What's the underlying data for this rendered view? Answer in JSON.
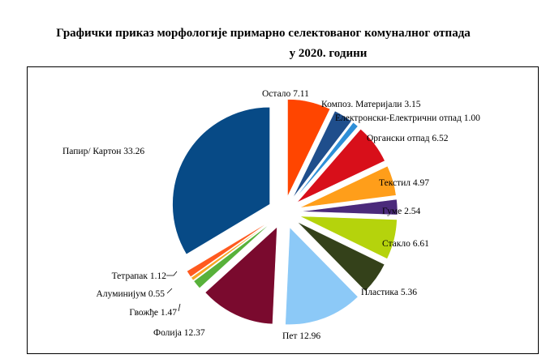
{
  "chart_data": {
    "type": "pie",
    "title_line1": "Графички приказ морфологије примарно селектованог комуналног отпада",
    "title_line2": "у 2020. години",
    "slices": [
      {
        "label": "Остало",
        "value": 7.11,
        "value_text": "7.11",
        "color": "#FF4500"
      },
      {
        "label": "Композ. Материјали",
        "value": 3.15,
        "value_text": "3.15",
        "color": "#1F4E8C"
      },
      {
        "label": "Електронски-Електрични отпад",
        "value": 1.0,
        "value_text": "1.00",
        "color": "#2E8FD8"
      },
      {
        "label": "Органски отпад",
        "value": 6.52,
        "value_text": "6.52",
        "color": "#D80F1A"
      },
      {
        "label": "Текстил",
        "value": 4.97,
        "value_text": "4.97",
        "color": "#FF9E1A"
      },
      {
        "label": "Гуме",
        "value": 2.54,
        "value_text": "2.54",
        "color": "#4B2A7B"
      },
      {
        "label": "Стакло",
        "value": 6.61,
        "value_text": "6.61",
        "color": "#B5D30C"
      },
      {
        "label": "Пластика",
        "value": 5.36,
        "value_text": "5.36",
        "color": "#34411A"
      },
      {
        "label": "Пет",
        "value": 12.96,
        "value_text": "12.96",
        "color": "#8CC9F7"
      },
      {
        "label": "Фолија",
        "value": 12.37,
        "value_text": "12.37",
        "color": "#7A0A2E"
      },
      {
        "label": "Гвожђе",
        "value": 1.47,
        "value_text": "1.47",
        "color": "#58B13A"
      },
      {
        "label": "Алуминијум",
        "value": 0.55,
        "value_text": "0.55",
        "color": "#F5A623"
      },
      {
        "label": "Тетрапак",
        "value": 1.12,
        "value_text": "1.12",
        "color": "#FF5A1F"
      },
      {
        "label": "Папир/ Картон",
        "value": 33.26,
        "value_text": "33.26",
        "color": "#074A86"
      }
    ]
  }
}
